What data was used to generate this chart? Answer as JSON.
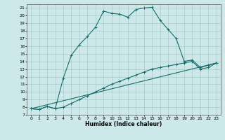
{
  "xlabel": "Humidex (Indice chaleur)",
  "bg_color": "#cce8e8",
  "grid_color": "#aacccc",
  "line_color": "#1a6b6b",
  "xlim": [
    -0.5,
    23.5
  ],
  "ylim": [
    7,
    21.5
  ],
  "xticks": [
    0,
    1,
    2,
    3,
    4,
    5,
    6,
    7,
    8,
    9,
    10,
    11,
    12,
    13,
    14,
    15,
    16,
    17,
    18,
    19,
    20,
    21,
    22,
    23
  ],
  "yticks": [
    7,
    8,
    9,
    10,
    11,
    12,
    13,
    14,
    15,
    16,
    17,
    18,
    19,
    20,
    21
  ],
  "line1_x": [
    0,
    1,
    2,
    3,
    4,
    5,
    6,
    7,
    8,
    9,
    10,
    11,
    12,
    13,
    14,
    15,
    16,
    17,
    18,
    19,
    20,
    21,
    22,
    23
  ],
  "line1_y": [
    7.8,
    7.7,
    8.1,
    7.8,
    11.8,
    14.8,
    16.2,
    17.3,
    18.5,
    20.6,
    20.3,
    20.2,
    19.8,
    20.8,
    21.0,
    21.1,
    19.4,
    18.2,
    17.0,
    14.0,
    14.2,
    13.2,
    13.5,
    13.8
  ],
  "line2_x": [
    0,
    1,
    2,
    3,
    4,
    5,
    6,
    7,
    8,
    9,
    10,
    11,
    12,
    13,
    14,
    15,
    16,
    17,
    18,
    19,
    20,
    21,
    22,
    23
  ],
  "line2_y": [
    7.8,
    7.7,
    8.1,
    7.8,
    8.0,
    8.5,
    9.0,
    9.5,
    10.0,
    10.5,
    11.0,
    11.4,
    11.8,
    12.2,
    12.6,
    13.0,
    13.2,
    13.4,
    13.6,
    13.8,
    14.0,
    13.0,
    13.2,
    13.8
  ],
  "line3_x": [
    0,
    23
  ],
  "line3_y": [
    7.8,
    13.8
  ]
}
